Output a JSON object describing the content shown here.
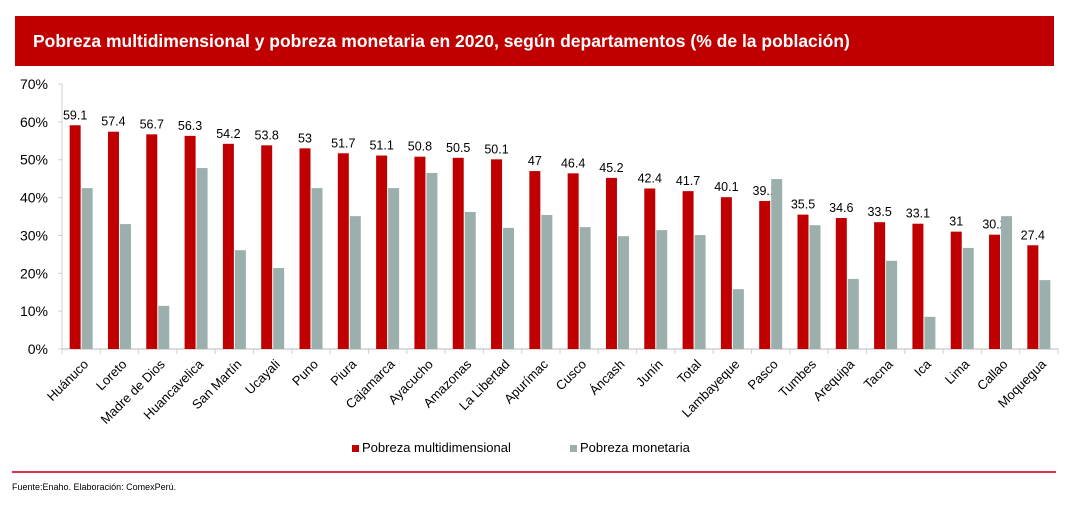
{
  "title": "Pobreza multidimensional y pobreza monetaria en 2020, según departamentos (% de la población)",
  "source": "Fuente:Enaho. Elaboración: ComexPerú.",
  "colors": {
    "title_bg": "#c00000",
    "multidimensional": "#c00000",
    "monetaria": "#9bb0ad",
    "footer_line": "#e03050"
  },
  "chart_data": {
    "type": "bar",
    "title": "Pobreza multidimensional y pobreza monetaria en 2020, según departamentos (% de la población)",
    "xlabel": "",
    "ylabel": "",
    "ylim": [
      0,
      70
    ],
    "yticks": [
      0,
      10,
      20,
      30,
      40,
      50,
      60,
      70
    ],
    "ytick_labels": [
      "0%",
      "10%",
      "20%",
      "30%",
      "40%",
      "50%",
      "60%",
      "70%"
    ],
    "grid": false,
    "legend_position": "bottom",
    "categories": [
      "Huánuco",
      "Loreto",
      "Madre de Dios",
      "Huancavelica",
      "San Martín",
      "Ucayali",
      "Puno",
      "Piura",
      "Cajamarca",
      "Ayacucho",
      "Amazonas",
      "La Libertad",
      "Apurímac",
      "Cusco",
      "Áncash",
      "Junín",
      "Total",
      "Lambayeque",
      "Pasco",
      "Tumbes",
      "Arequipa",
      "Tacna",
      "Ica",
      "Lima",
      "Callao",
      "Moquegua"
    ],
    "series": [
      {
        "name": "Pobreza multidimensional",
        "labeled": true,
        "values": [
          59.1,
          57.4,
          56.7,
          56.3,
          54.2,
          53.8,
          53,
          51.7,
          51.1,
          50.8,
          50.5,
          50.1,
          47,
          46.4,
          45.2,
          42.4,
          41.7,
          40.1,
          39.1,
          35.5,
          34.6,
          33.5,
          33.1,
          31,
          30.2,
          27.4
        ]
      },
      {
        "name": "Pobreza monetaria",
        "labeled": false,
        "values": [
          42.5,
          33.0,
          11.4,
          47.8,
          26.1,
          21.4,
          42.5,
          35.1,
          42.5,
          46.5,
          36.2,
          32.0,
          35.4,
          32.2,
          29.8,
          31.4,
          30.1,
          15.8,
          44.9,
          32.7,
          18.5,
          23.3,
          8.5,
          26.7,
          35.1,
          18.2
        ]
      }
    ]
  }
}
